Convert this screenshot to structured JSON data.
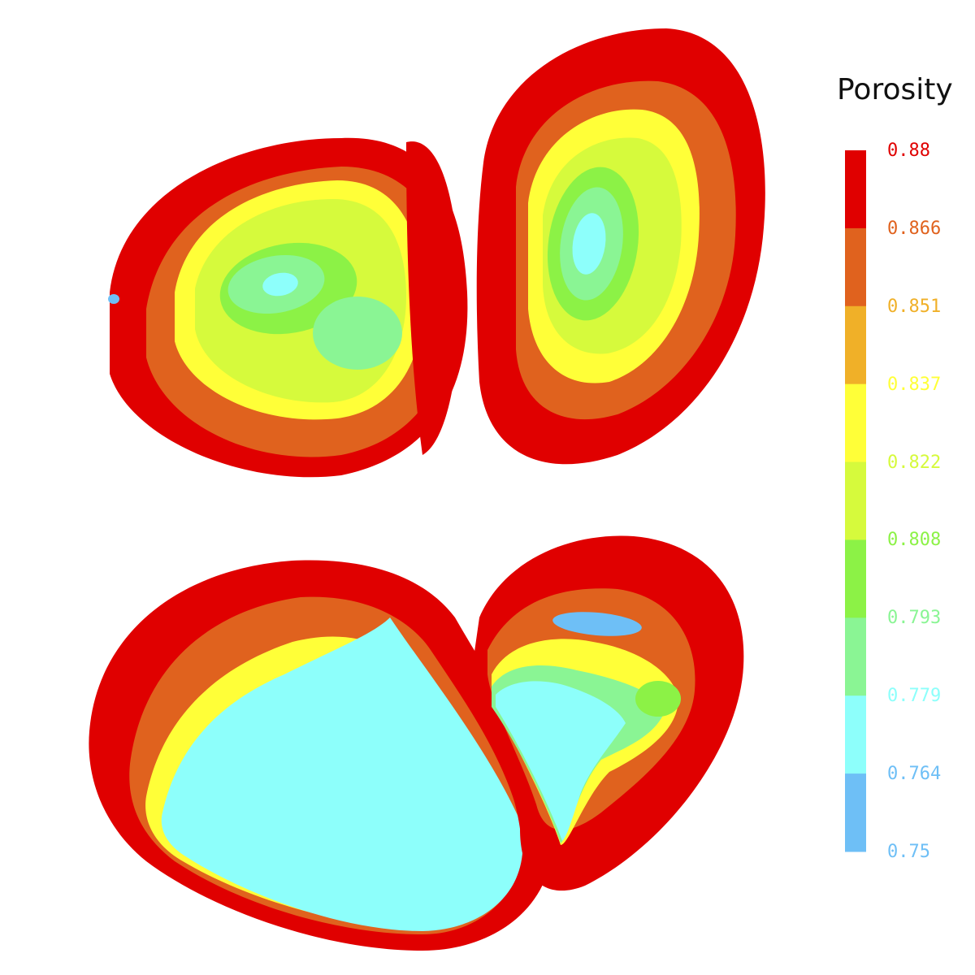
{
  "chart_data": {
    "type": "heatmap",
    "title": "",
    "legend_title": "Porosity",
    "legend_placement": "right",
    "colorbar": {
      "range": [
        0.75,
        0.88
      ],
      "ticks": [
        {
          "value": "0.88",
          "color": "#e00000"
        },
        {
          "value": "0.866",
          "color": "#e0621e"
        },
        {
          "value": "0.851",
          "color": "#f0b028"
        },
        {
          "value": "0.837",
          "color": "#ffff38"
        },
        {
          "value": "0.822",
          "color": "#d6fa3c"
        },
        {
          "value": "0.808",
          "color": "#8cf246"
        },
        {
          "value": "0.793",
          "color": "#8af594"
        },
        {
          "value": "0.779",
          "color": "#8dfffb"
        },
        {
          "value": "0.764",
          "color": "#6ebff6"
        },
        {
          "value": "0.75",
          "color": "#6ebff6"
        }
      ]
    },
    "regions": [
      {
        "name_hint": "upper-left",
        "core_porosity": 0.79
      },
      {
        "name_hint": "upper-right",
        "core_porosity": 0.785
      },
      {
        "name_hint": "lower-left",
        "core_porosity": 0.779
      },
      {
        "name_hint": "lower-right",
        "core_porosity": 0.79
      }
    ],
    "grid": false
  }
}
